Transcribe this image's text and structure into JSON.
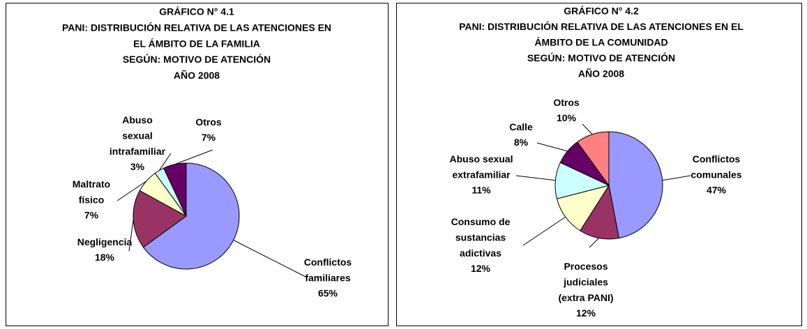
{
  "chart_data": [
    {
      "type": "pie",
      "title": [
        "GRÁFICO N° 4.1",
        "PANI: DISTRIBUCIÓN RELATIVA DE LAS ATENCIONES EN",
        "EL ÁMBITO DE LA FAMILIA",
        "SEGÚN: MOTIVO DE ATENCIÓN",
        "AÑO 2008"
      ],
      "categories": [
        "Conflictos\nfamiliares",
        "Negligencia",
        "Maltrato\nfísico",
        "Abuso\nsexual\nintrafamiliar",
        "Otros"
      ],
      "values": [
        65,
        18,
        7,
        3,
        7
      ],
      "value_labels": [
        "65%",
        "18%",
        "7%",
        "3%",
        "7%"
      ],
      "colors": [
        "#9999ff",
        "#993366",
        "#ffffcc",
        "#ccffff",
        "#660066"
      ]
    },
    {
      "type": "pie",
      "title": [
        "GRÁFICO N° 4.2",
        "PANI: DISTRIBUCIÓN RELATIVA DE LAS ATENCIONES EN EL",
        "ÁMBITO DE LA COMUNIDAD",
        "SEGÚN: MOTIVO DE ATENCIÓN",
        "AÑO 2008"
      ],
      "categories": [
        "Conflictos\ncomunales",
        "Procesos\njudiciales\n(extra PANI)",
        "Consumo de\nsustancias\nadictivas",
        "Abuso sexual\nextrafamiliar",
        "Calle",
        "Otros"
      ],
      "values": [
        47,
        12,
        12,
        11,
        8,
        10
      ],
      "value_labels": [
        "47%",
        "12%",
        "12%",
        "11%",
        "8%",
        "10%"
      ],
      "colors": [
        "#9999ff",
        "#993366",
        "#ffffcc",
        "#ccffff",
        "#660066",
        "#ff8080"
      ]
    }
  ]
}
